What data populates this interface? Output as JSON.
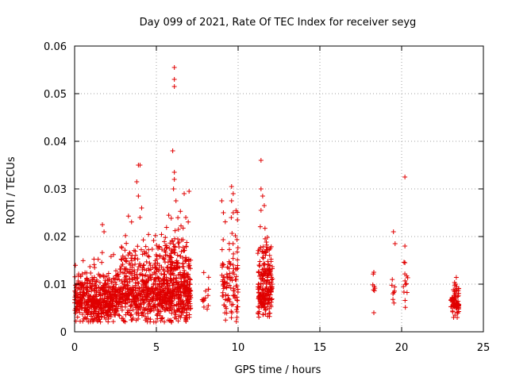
{
  "chart_data": {
    "type": "scatter",
    "title": "Day 099 of 2021, Rate Of TEC Index for receiver seyg",
    "xlabel": "GPS time / hours",
    "ylabel": "ROTI / TECUs",
    "xlim": [
      0,
      25
    ],
    "ylim": [
      0,
      0.06
    ],
    "xticks": [
      0,
      5,
      10,
      15,
      20,
      25
    ],
    "xtick_labels": [
      "0",
      "5",
      "10",
      "15",
      "20",
      "25"
    ],
    "yticks": [
      0,
      0.01,
      0.02,
      0.03,
      0.04,
      0.05,
      0.06
    ],
    "ytick_labels": [
      "0",
      "0.01",
      "0.02",
      "0.03",
      "0.04",
      "0.05",
      "0.06"
    ],
    "grid": true,
    "marker": "plus",
    "color": "#e00000",
    "clusters": [
      {
        "x_range": [
          0.0,
          2.8
        ],
        "y_min": 0.002,
        "y_mean": 0.0065,
        "y_spread": 0.0035,
        "count": 520
      },
      {
        "x_range": [
          2.8,
          5.5
        ],
        "y_min": 0.002,
        "y_mean": 0.0085,
        "y_spread": 0.005,
        "count": 520
      },
      {
        "x_range": [
          5.5,
          7.1
        ],
        "y_min": 0.002,
        "y_mean": 0.009,
        "y_spread": 0.006,
        "count": 420
      },
      {
        "x_range": [
          7.8,
          8.2
        ],
        "y_min": 0.003,
        "y_mean": 0.007,
        "y_spread": 0.002,
        "count": 15
      },
      {
        "x_range": [
          9.0,
          10.0
        ],
        "y_min": 0.002,
        "y_mean": 0.011,
        "y_spread": 0.007,
        "count": 110
      },
      {
        "x_range": [
          11.2,
          12.1
        ],
        "y_min": 0.003,
        "y_mean": 0.009,
        "y_spread": 0.005,
        "count": 230
      },
      {
        "x_range": [
          18.2,
          18.4
        ],
        "y_min": 0.004,
        "y_mean": 0.009,
        "y_spread": 0.002,
        "count": 6
      },
      {
        "x_range": [
          19.4,
          19.6
        ],
        "y_min": 0.003,
        "y_mean": 0.009,
        "y_spread": 0.003,
        "count": 8
      },
      {
        "x_range": [
          20.1,
          20.4
        ],
        "y_min": 0.003,
        "y_mean": 0.009,
        "y_spread": 0.003,
        "count": 12
      },
      {
        "x_range": [
          23.0,
          23.5
        ],
        "y_min": 0.003,
        "y_mean": 0.006,
        "y_spread": 0.002,
        "count": 80
      }
    ],
    "notable_points": [
      {
        "x": 6.1,
        "y": 0.0555
      },
      {
        "x": 6.1,
        "y": 0.053
      },
      {
        "x": 6.1,
        "y": 0.0515
      },
      {
        "x": 6.0,
        "y": 0.038
      },
      {
        "x": 6.1,
        "y": 0.0335
      },
      {
        "x": 6.1,
        "y": 0.032
      },
      {
        "x": 6.05,
        "y": 0.03
      },
      {
        "x": 6.2,
        "y": 0.0275
      },
      {
        "x": 3.9,
        "y": 0.035
      },
      {
        "x": 4.0,
        "y": 0.035
      },
      {
        "x": 3.8,
        "y": 0.0315
      },
      {
        "x": 3.9,
        "y": 0.0285
      },
      {
        "x": 4.1,
        "y": 0.026
      },
      {
        "x": 4.0,
        "y": 0.024
      },
      {
        "x": 6.7,
        "y": 0.029
      },
      {
        "x": 7.0,
        "y": 0.0295
      },
      {
        "x": 6.8,
        "y": 0.024
      },
      {
        "x": 1.7,
        "y": 0.0225
      },
      {
        "x": 1.8,
        "y": 0.021
      },
      {
        "x": 9.6,
        "y": 0.0305
      },
      {
        "x": 9.7,
        "y": 0.029
      },
      {
        "x": 9.6,
        "y": 0.0275
      },
      {
        "x": 9.7,
        "y": 0.025
      },
      {
        "x": 9.0,
        "y": 0.0275
      },
      {
        "x": 9.1,
        "y": 0.025
      },
      {
        "x": 11.4,
        "y": 0.036
      },
      {
        "x": 11.4,
        "y": 0.03
      },
      {
        "x": 11.5,
        "y": 0.0285
      },
      {
        "x": 11.4,
        "y": 0.0255
      },
      {
        "x": 11.6,
        "y": 0.0265
      },
      {
        "x": 19.5,
        "y": 0.021
      },
      {
        "x": 19.6,
        "y": 0.0185
      },
      {
        "x": 20.2,
        "y": 0.0325
      },
      {
        "x": 20.2,
        "y": 0.018
      },
      {
        "x": 20.2,
        "y": 0.0145
      },
      {
        "x": 18.3,
        "y": 0.0125
      },
      {
        "x": 18.3,
        "y": 0.004
      },
      {
        "x": 23.3,
        "y": 0.01
      },
      {
        "x": 23.4,
        "y": 0.003
      }
    ]
  }
}
